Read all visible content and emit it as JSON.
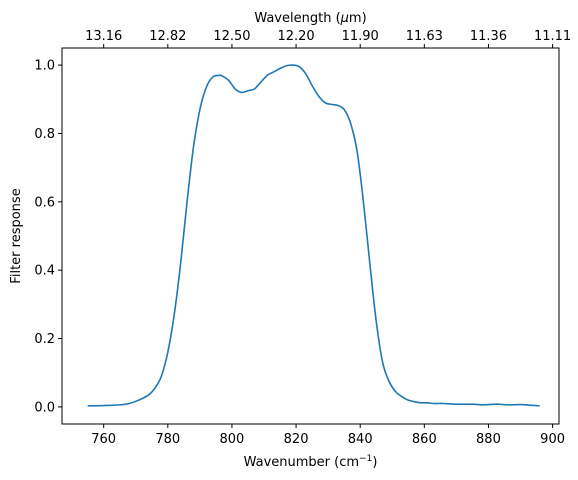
{
  "chart_data": {
    "type": "line",
    "xlabel": "Wavenumber (cm",
    "xlabel_sup": "−1",
    "xlabel_end": ")",
    "ylabel": "Filter response",
    "top_xlabel": "Wavelength (",
    "top_xlabel_mu": "μ",
    "top_xlabel_end": "m)",
    "xlim": [
      747,
      902
    ],
    "ylim": [
      -0.05,
      1.05
    ],
    "xticks": [
      760,
      780,
      800,
      820,
      840,
      860,
      880,
      900
    ],
    "yticks": [
      "0.0",
      "0.2",
      "0.4",
      "0.6",
      "0.8",
      "1.0"
    ],
    "top_ticks": [
      {
        "wavenumber": 760,
        "label": "13.16"
      },
      {
        "wavenumber": 780,
        "label": "12.82"
      },
      {
        "wavenumber": 800,
        "label": "12.50"
      },
      {
        "wavenumber": 820,
        "label": "12.20"
      },
      {
        "wavenumber": 840,
        "label": "11.90"
      },
      {
        "wavenumber": 860,
        "label": "11.63"
      },
      {
        "wavenumber": 880,
        "label": "11.36"
      },
      {
        "wavenumber": 900,
        "label": "11.11"
      }
    ],
    "line_color": "#1f77b4",
    "series": [
      {
        "x": [
          755,
          760,
          765,
          768,
          771,
          774,
          776,
          778,
          780,
          782,
          784,
          786,
          788,
          790,
          792,
          794,
          796,
          797,
          799,
          801,
          803,
          805,
          807,
          809,
          811,
          813,
          815,
          817,
          819,
          821,
          823,
          825,
          827,
          829,
          831,
          833,
          835,
          837,
          839,
          841,
          843,
          845,
          847,
          849,
          851,
          853,
          855,
          857,
          859,
          861,
          863,
          866,
          870,
          875,
          878,
          880,
          883,
          886,
          890,
          893,
          896
        ],
        "y": [
          0.003,
          0.004,
          0.006,
          0.01,
          0.02,
          0.035,
          0.055,
          0.09,
          0.16,
          0.27,
          0.42,
          0.6,
          0.76,
          0.87,
          0.935,
          0.965,
          0.97,
          0.968,
          0.955,
          0.93,
          0.92,
          0.925,
          0.93,
          0.95,
          0.97,
          0.98,
          0.99,
          0.998,
          1.0,
          0.995,
          0.975,
          0.94,
          0.91,
          0.89,
          0.885,
          0.882,
          0.87,
          0.83,
          0.75,
          0.6,
          0.42,
          0.25,
          0.13,
          0.075,
          0.045,
          0.03,
          0.02,
          0.015,
          0.012,
          0.012,
          0.01,
          0.01,
          0.008,
          0.008,
          0.006,
          0.007,
          0.008,
          0.006,
          0.007,
          0.005,
          0.003
        ]
      }
    ]
  }
}
